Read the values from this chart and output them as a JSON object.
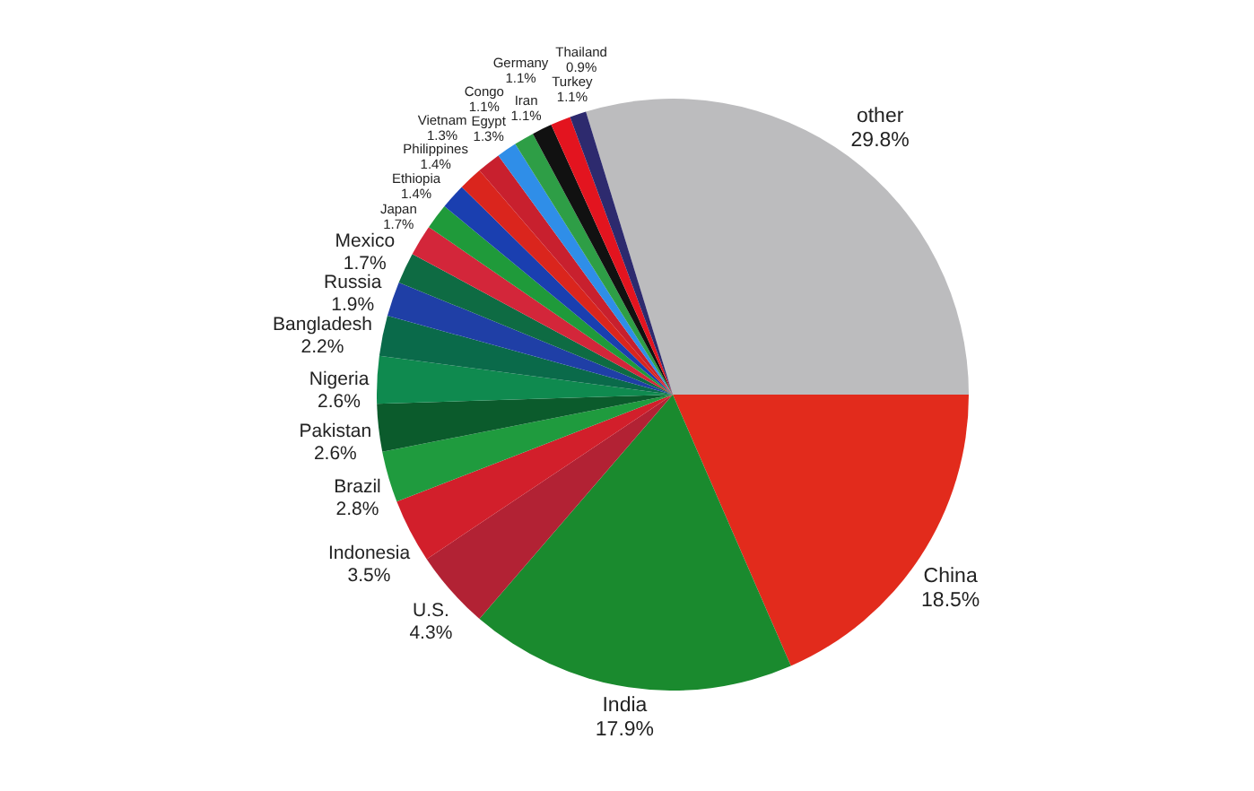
{
  "chart_data": {
    "type": "pie",
    "categories": [
      "other",
      "China",
      "India",
      "U.S.",
      "Indonesia",
      "Brazil",
      "Pakistan",
      "Nigeria",
      "Bangladesh",
      "Russia",
      "Mexico",
      "Japan",
      "Ethiopia",
      "Philippines",
      "Vietnam",
      "Egypt",
      "Congo",
      "Iran",
      "Germany",
      "Turkey",
      "Thailand"
    ],
    "values": [
      29.8,
      18.5,
      17.9,
      4.3,
      3.5,
      2.8,
      2.6,
      2.6,
      2.2,
      1.9,
      1.7,
      1.7,
      1.4,
      1.4,
      1.3,
      1.3,
      1.1,
      1.1,
      1.1,
      1.1,
      0.9
    ],
    "value_labels": [
      "29.8%",
      "18.5%",
      "17.9%",
      "4.3%",
      "3.5%",
      "2.8%",
      "2.6%",
      "2.6%",
      "2.2%",
      "1.9%",
      "1.7%",
      "1.7%",
      "1.4%",
      "1.4%",
      "1.3%",
      "1.3%",
      "1.1%",
      "1.1%",
      "1.1%",
      "1.1%",
      "0.9%"
    ],
    "colors": [
      "#bcbcbe",
      "#e22b1c",
      "#1a8a2e",
      "#b22234",
      "#d21f2b",
      "#1f9b3e",
      "#0b5b2c",
      "#0f8a4f",
      "#0a6a4a",
      "#1f3fa6",
      "#0e6b43",
      "#d3263a",
      "#1f9a3a",
      "#1a3fb0",
      "#da251d",
      "#c8202e",
      "#2f8ee8",
      "#2e9e46",
      "#111111",
      "#e3141f",
      "#2d2a6e"
    ]
  }
}
